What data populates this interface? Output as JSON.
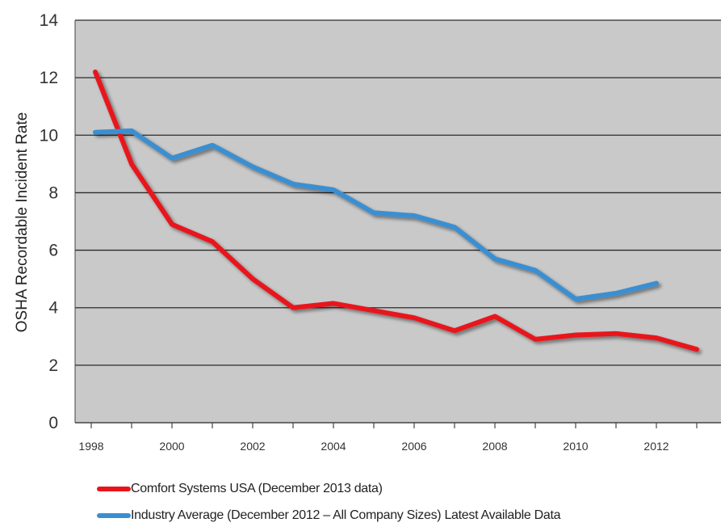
{
  "chart_data": {
    "type": "line",
    "title": "",
    "xlabel": "",
    "ylabel": "OSHA Recordable Incident Rate",
    "xticks": [
      "1998",
      "2000",
      "2002",
      "2004",
      "2006",
      "2008",
      "2010",
      "2012"
    ],
    "yticks": [
      "0",
      "2",
      "4",
      "6",
      "8",
      "10",
      "12",
      "14"
    ],
    "xlim": [
      1997.6,
      2013.6
    ],
    "ylim": [
      0,
      14
    ],
    "grid": true,
    "legend_position": "bottom",
    "series": [
      {
        "name": "Comfort Systems USA (December 2013  data)",
        "color": "#e8141c",
        "x": [
          1998.1,
          1999,
          2000,
          2001,
          2002,
          2003,
          2004,
          2005,
          2006,
          2007,
          2008,
          2009,
          2010,
          2011,
          2012,
          2013
        ],
        "y": [
          12.2,
          9.0,
          6.9,
          6.3,
          5.0,
          4.0,
          4.15,
          3.9,
          3.65,
          3.2,
          3.7,
          2.9,
          3.05,
          3.1,
          2.95,
          2.55
        ]
      },
      {
        "name": "Industry Average (December 2012 – All Company Sizes) Latest Available Data",
        "color": "#3a8fd1",
        "x": [
          1998.1,
          1999,
          2000,
          2001,
          2002,
          2003,
          2004,
          2005,
          2006,
          2007,
          2008,
          2009,
          2010,
          2011,
          2012
        ],
        "y": [
          10.1,
          10.15,
          9.2,
          9.65,
          8.9,
          8.3,
          8.1,
          7.3,
          7.2,
          6.8,
          5.7,
          5.3,
          4.3,
          4.5,
          4.85
        ]
      }
    ]
  }
}
